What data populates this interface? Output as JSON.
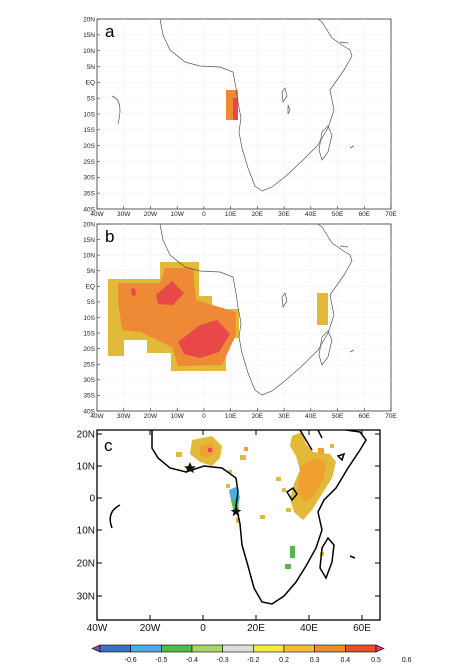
{
  "panels": [
    {
      "id": "a",
      "label": "a"
    },
    {
      "id": "b",
      "label": "b"
    },
    {
      "id": "c",
      "label": "c"
    }
  ],
  "axes_ab": {
    "lon_ticks": [
      "40W",
      "30W",
      "20W",
      "10W",
      "0",
      "10E",
      "20E",
      "30E",
      "40E",
      "50E",
      "60E",
      "70E"
    ],
    "lat_ticks": [
      "20N",
      "15N",
      "10N",
      "5N",
      "EQ",
      "5S",
      "10S",
      "15S",
      "20S",
      "25S",
      "30S",
      "35S",
      "40S"
    ]
  },
  "axes_c": {
    "lon_ticks": [
      "40W",
      "20W",
      "0",
      "20E",
      "40E",
      "60E"
    ],
    "lat_ticks": [
      "20N",
      "10N",
      "0",
      "10N",
      "20N",
      "30N"
    ]
  },
  "colorbar": {
    "labels": [
      "-0.6",
      "-0.5",
      "-0.4",
      "-0.3",
      "-0.2",
      "0.2",
      "0.3",
      "0.4",
      "0.5",
      "0.6"
    ],
    "colors": [
      "#7b50a8",
      "#3c6fc7",
      "#4aaee0",
      "#55b84f",
      "#a8d46a",
      "#dddddd",
      "#f4ec3a",
      "#f2c12e",
      "#f08c2a",
      "#ea4d2c",
      "#e23a7a"
    ]
  },
  "map_colors": {
    "c03": "#e2b938",
    "c04": "#f0a030",
    "c05": "#ee8a35",
    "c06": "#e84848",
    "c_green": "#55b84f",
    "c_blue": "#4aaee0"
  },
  "markers": [
    "star-marker",
    "star-marker"
  ]
}
